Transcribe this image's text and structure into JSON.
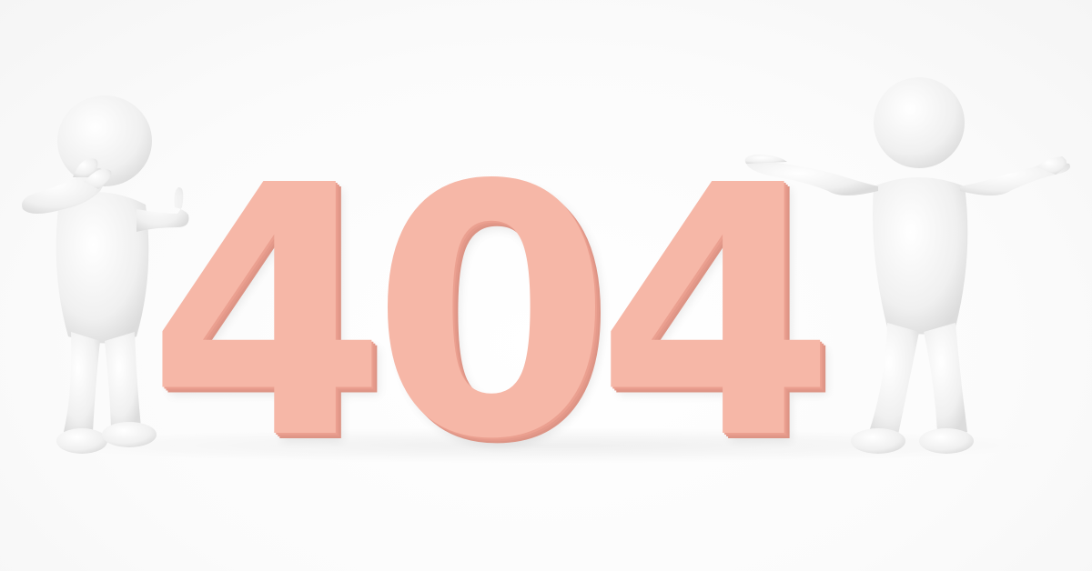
{
  "scene": {
    "digits": [
      "4",
      "0",
      "4"
    ]
  },
  "colors": {
    "digit_face": "#f6b7a7",
    "digit_side": "#e4998a",
    "figure_body": "#f2f2f2",
    "background": "#ffffff"
  },
  "icons": {
    "left_figure": "facepalm-figure-icon",
    "right_figure": "shrugging-figure-icon"
  }
}
